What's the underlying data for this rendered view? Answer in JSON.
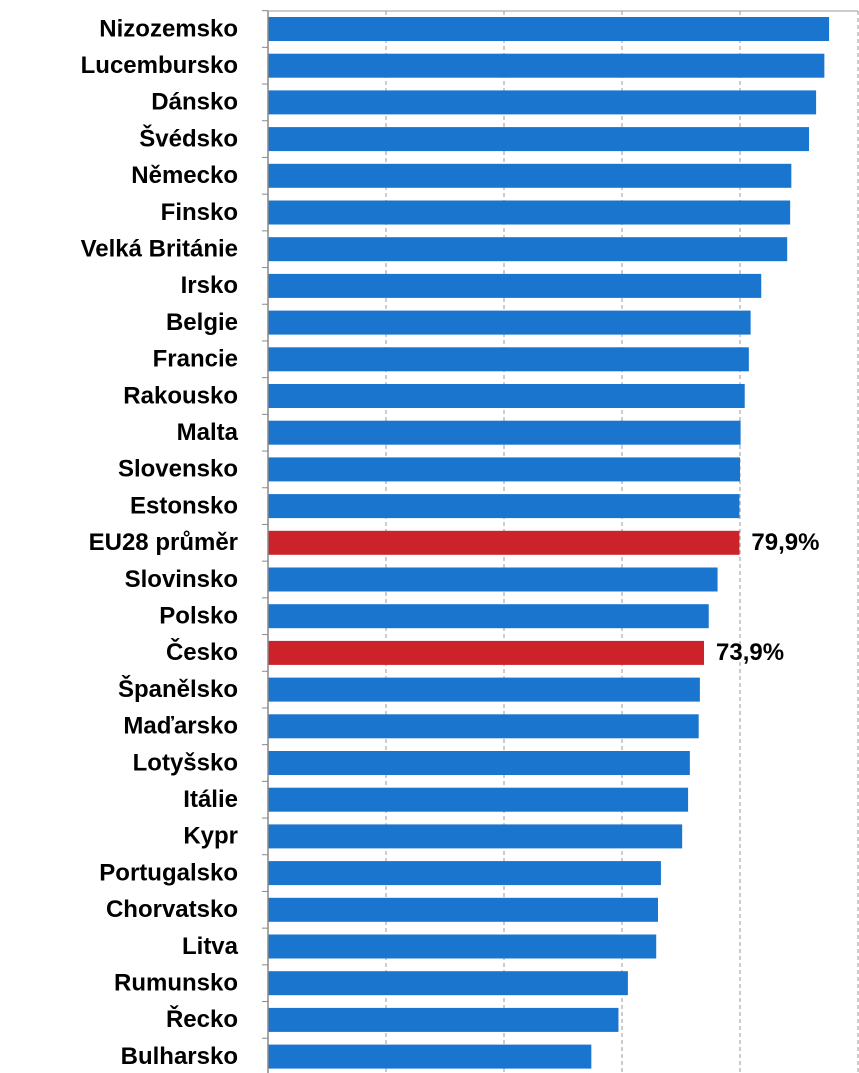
{
  "chart_data": {
    "type": "barh",
    "categories": [
      "Nizozemsko",
      "Lucembursko",
      "Dánsko",
      "Švédsko",
      "Německo",
      "Finsko",
      "Velká Británie",
      "Irsko",
      "Belgie",
      "Francie",
      "Rakousko",
      "Malta",
      "Slovensko",
      "Estonsko",
      "EU28 průměr",
      "Slovinsko",
      "Polsko",
      "Česko",
      "Španělsko",
      "Maďarsko",
      "Lotyšsko",
      "Itálie",
      "Kypr",
      "Portugalsko",
      "Chorvatsko",
      "Litva",
      "Rumunsko",
      "Řecko",
      "Bulharsko"
    ],
    "values": [
      95.1,
      94.3,
      92.9,
      91.7,
      88.7,
      88.5,
      88.0,
      83.6,
      81.8,
      81.5,
      80.8,
      80.1,
      80.0,
      79.9,
      79.9,
      76.2,
      74.7,
      73.9,
      73.2,
      73.0,
      71.5,
      71.2,
      70.2,
      66.6,
      66.1,
      65.8,
      61.0,
      59.4,
      54.8
    ],
    "value_labels": [
      null,
      null,
      null,
      null,
      null,
      null,
      null,
      null,
      null,
      null,
      null,
      null,
      null,
      null,
      "79,9%",
      null,
      null,
      "73,9%",
      null,
      null,
      null,
      null,
      null,
      null,
      null,
      null,
      null,
      null,
      null
    ],
    "colors": [
      "#1a75cf",
      "#1a75cf",
      "#1a75cf",
      "#1a75cf",
      "#1a75cf",
      "#1a75cf",
      "#1a75cf",
      "#1a75cf",
      "#1a75cf",
      "#1a75cf",
      "#1a75cf",
      "#1a75cf",
      "#1a75cf",
      "#1a75cf",
      "#cc2229",
      "#1a75cf",
      "#1a75cf",
      "#cc2229",
      "#1a75cf",
      "#1a75cf",
      "#1a75cf",
      "#1a75cf",
      "#1a75cf",
      "#1a75cf",
      "#1a75cf",
      "#1a75cf",
      "#1a75cf",
      "#1a75cf",
      "#1a75cf"
    ],
    "xlim": [
      0,
      100
    ],
    "xticks": [
      0,
      20,
      40,
      60,
      80,
      100
    ],
    "grid": true
  }
}
